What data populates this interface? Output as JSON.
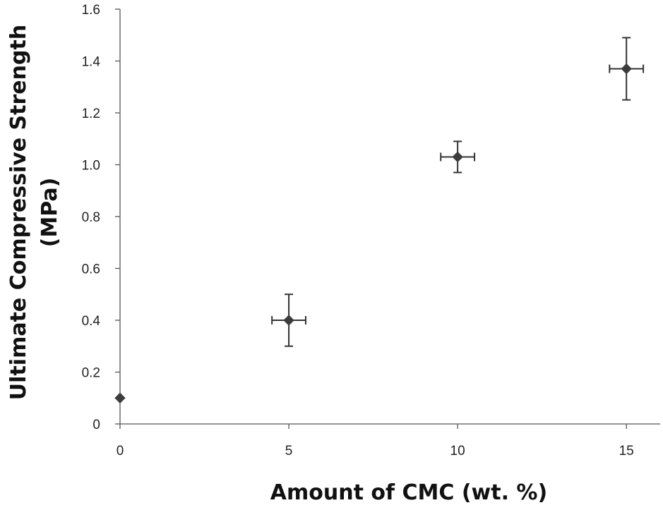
{
  "chart_data": {
    "type": "scatter",
    "xlabel": "Amount of CMC (wt. %)",
    "ylabel": [
      "Ultimate Compressive Strength",
      "(MPa)"
    ],
    "xlim": [
      0,
      16
    ],
    "ylim": [
      0,
      1.6
    ],
    "x_ticks": [
      0,
      5,
      10,
      15
    ],
    "x_tick_labels": [
      "0",
      "5",
      "10",
      "15"
    ],
    "y_ticks": [
      0,
      0.2,
      0.4,
      0.6,
      0.8,
      1.0,
      1.2,
      1.4,
      1.6
    ],
    "y_tick_labels": [
      "0",
      "0.2",
      "0.4",
      "0.6",
      "0.8",
      "1.0",
      "1.2",
      "1.4",
      "1.6"
    ],
    "grid": false,
    "legend": "none",
    "marker": "diamond",
    "marker_color": "#3c3c3c",
    "points": [
      {
        "x": 0,
        "y": 0.1,
        "x_err": 0,
        "y_err": 0
      },
      {
        "x": 5,
        "y": 0.4,
        "x_err": 0.5,
        "y_err": 0.1
      },
      {
        "x": 10,
        "y": 1.03,
        "x_err": 0.5,
        "y_err": 0.06
      },
      {
        "x": 15,
        "y": 1.37,
        "x_err": 0.5,
        "y_err": 0.12
      }
    ]
  }
}
